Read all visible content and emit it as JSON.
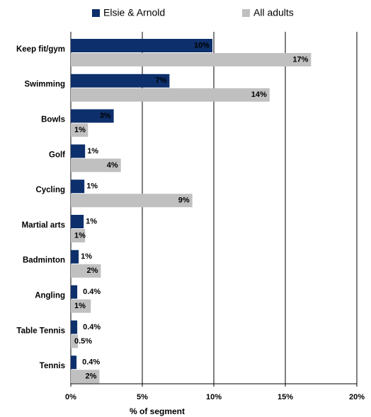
{
  "chart_data": {
    "type": "hbar",
    "categories": [
      "Keep fit/gym",
      "Swimming",
      "Bowls",
      "Golf",
      "Cycling",
      "Martial arts",
      "Badminton",
      "Angling",
      "Table Tennis",
      "Tennis"
    ],
    "series": [
      {
        "name": "Elsie & Arnold",
        "color": "#0d2f6b",
        "values": [
          9.9,
          6.9,
          3.0,
          1.0,
          0.95,
          0.9,
          0.55,
          0.45,
          0.45,
          0.4
        ],
        "value_labels": [
          "10%",
          "7%",
          "3%",
          "1%",
          "1%",
          "1%",
          "1%",
          "0.4%",
          "0.4%",
          "0.4%"
        ]
      },
      {
        "name": "All adults",
        "color": "#c0c0c0",
        "values": [
          16.8,
          13.9,
          1.2,
          3.5,
          8.5,
          1.0,
          2.1,
          1.4,
          0.5,
          2.0
        ],
        "value_labels": [
          "17%",
          "14%",
          "1%",
          "4%",
          "9%",
          "1%",
          "2%",
          "1%",
          "0.5%",
          "2%"
        ]
      }
    ],
    "xlim": [
      0,
      20
    ],
    "xticks": [
      {
        "value": 0,
        "label": "0%"
      },
      {
        "value": 5,
        "label": "5%"
      },
      {
        "value": 10,
        "label": "10%"
      },
      {
        "value": 15,
        "label": "15%"
      },
      {
        "value": 20,
        "label": "20%"
      }
    ],
    "xlabel": "% of segment",
    "grid": true
  }
}
